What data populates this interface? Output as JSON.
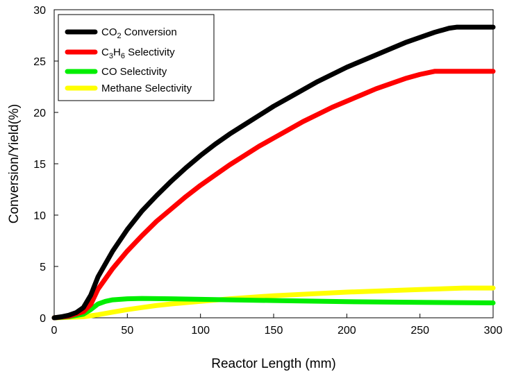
{
  "chart_data": {
    "type": "line",
    "xlabel": "Reactor Length (mm)",
    "ylabel": "Conversion/Yield(%)",
    "xlim": [
      0,
      300
    ],
    "ylim": [
      0,
      30
    ],
    "xticks": [
      0,
      50,
      100,
      150,
      200,
      250,
      300
    ],
    "yticks": [
      0,
      5,
      10,
      15,
      20,
      25,
      30
    ],
    "legend_position": "top-left",
    "series": [
      {
        "name": "CO2 Conversion",
        "legend": {
          "base": "CO",
          "sub": "2",
          "rest": " Conversion"
        },
        "color": "#000000",
        "x": [
          0,
          5,
          10,
          15,
          20,
          25,
          30,
          40,
          50,
          60,
          70,
          80,
          90,
          100,
          110,
          120,
          130,
          140,
          150,
          160,
          170,
          180,
          190,
          200,
          210,
          220,
          230,
          240,
          250,
          260,
          270,
          275,
          280,
          290,
          300
        ],
        "y": [
          0.0,
          0.1,
          0.25,
          0.5,
          1.0,
          2.2,
          4.0,
          6.5,
          8.6,
          10.4,
          11.9,
          13.3,
          14.6,
          15.8,
          16.9,
          17.9,
          18.8,
          19.7,
          20.6,
          21.4,
          22.2,
          23.0,
          23.7,
          24.4,
          25.0,
          25.6,
          26.2,
          26.8,
          27.3,
          27.8,
          28.2,
          28.3,
          28.3,
          28.3,
          28.3
        ]
      },
      {
        "name": "C3H6 Selectivity",
        "legend": {
          "base": "C",
          "sub": "3",
          "mid": "H",
          "sub2": "6",
          "rest": " Selectivity"
        },
        "color": "#ff0000",
        "x": [
          0,
          10,
          20,
          25,
          30,
          40,
          50,
          60,
          70,
          80,
          90,
          100,
          110,
          120,
          130,
          140,
          150,
          160,
          170,
          180,
          190,
          200,
          210,
          220,
          230,
          240,
          250,
          260,
          270,
          275,
          280,
          290,
          300
        ],
        "y": [
          0.0,
          0.15,
          0.6,
          1.3,
          2.8,
          4.8,
          6.5,
          8.0,
          9.4,
          10.6,
          11.8,
          12.9,
          13.9,
          14.9,
          15.8,
          16.7,
          17.5,
          18.3,
          19.1,
          19.8,
          20.5,
          21.1,
          21.7,
          22.3,
          22.8,
          23.3,
          23.7,
          24.0,
          24.0,
          24.0,
          24.0,
          24.0,
          24.0
        ]
      },
      {
        "name": "CO Selectivity",
        "legend": {
          "base": "CO Selectivity"
        },
        "color": "#00ee00",
        "x": [
          0,
          10,
          20,
          25,
          30,
          35,
          40,
          50,
          60,
          70,
          80,
          100,
          120,
          150,
          200,
          250,
          300
        ],
        "y": [
          0.0,
          0.1,
          0.35,
          0.8,
          1.35,
          1.6,
          1.75,
          1.85,
          1.88,
          1.87,
          1.85,
          1.8,
          1.75,
          1.68,
          1.57,
          1.5,
          1.45
        ]
      },
      {
        "name": "Methane Selectivity",
        "legend": {
          "base": "Methane Selectivity"
        },
        "color": "#ffff00",
        "x": [
          0,
          10,
          20,
          30,
          40,
          50,
          60,
          70,
          80,
          100,
          120,
          150,
          200,
          250,
          280,
          300
        ],
        "y": [
          0.0,
          0.05,
          0.1,
          0.3,
          0.55,
          0.8,
          1.0,
          1.2,
          1.35,
          1.6,
          1.85,
          2.15,
          2.5,
          2.75,
          2.9,
          2.9
        ]
      }
    ]
  }
}
